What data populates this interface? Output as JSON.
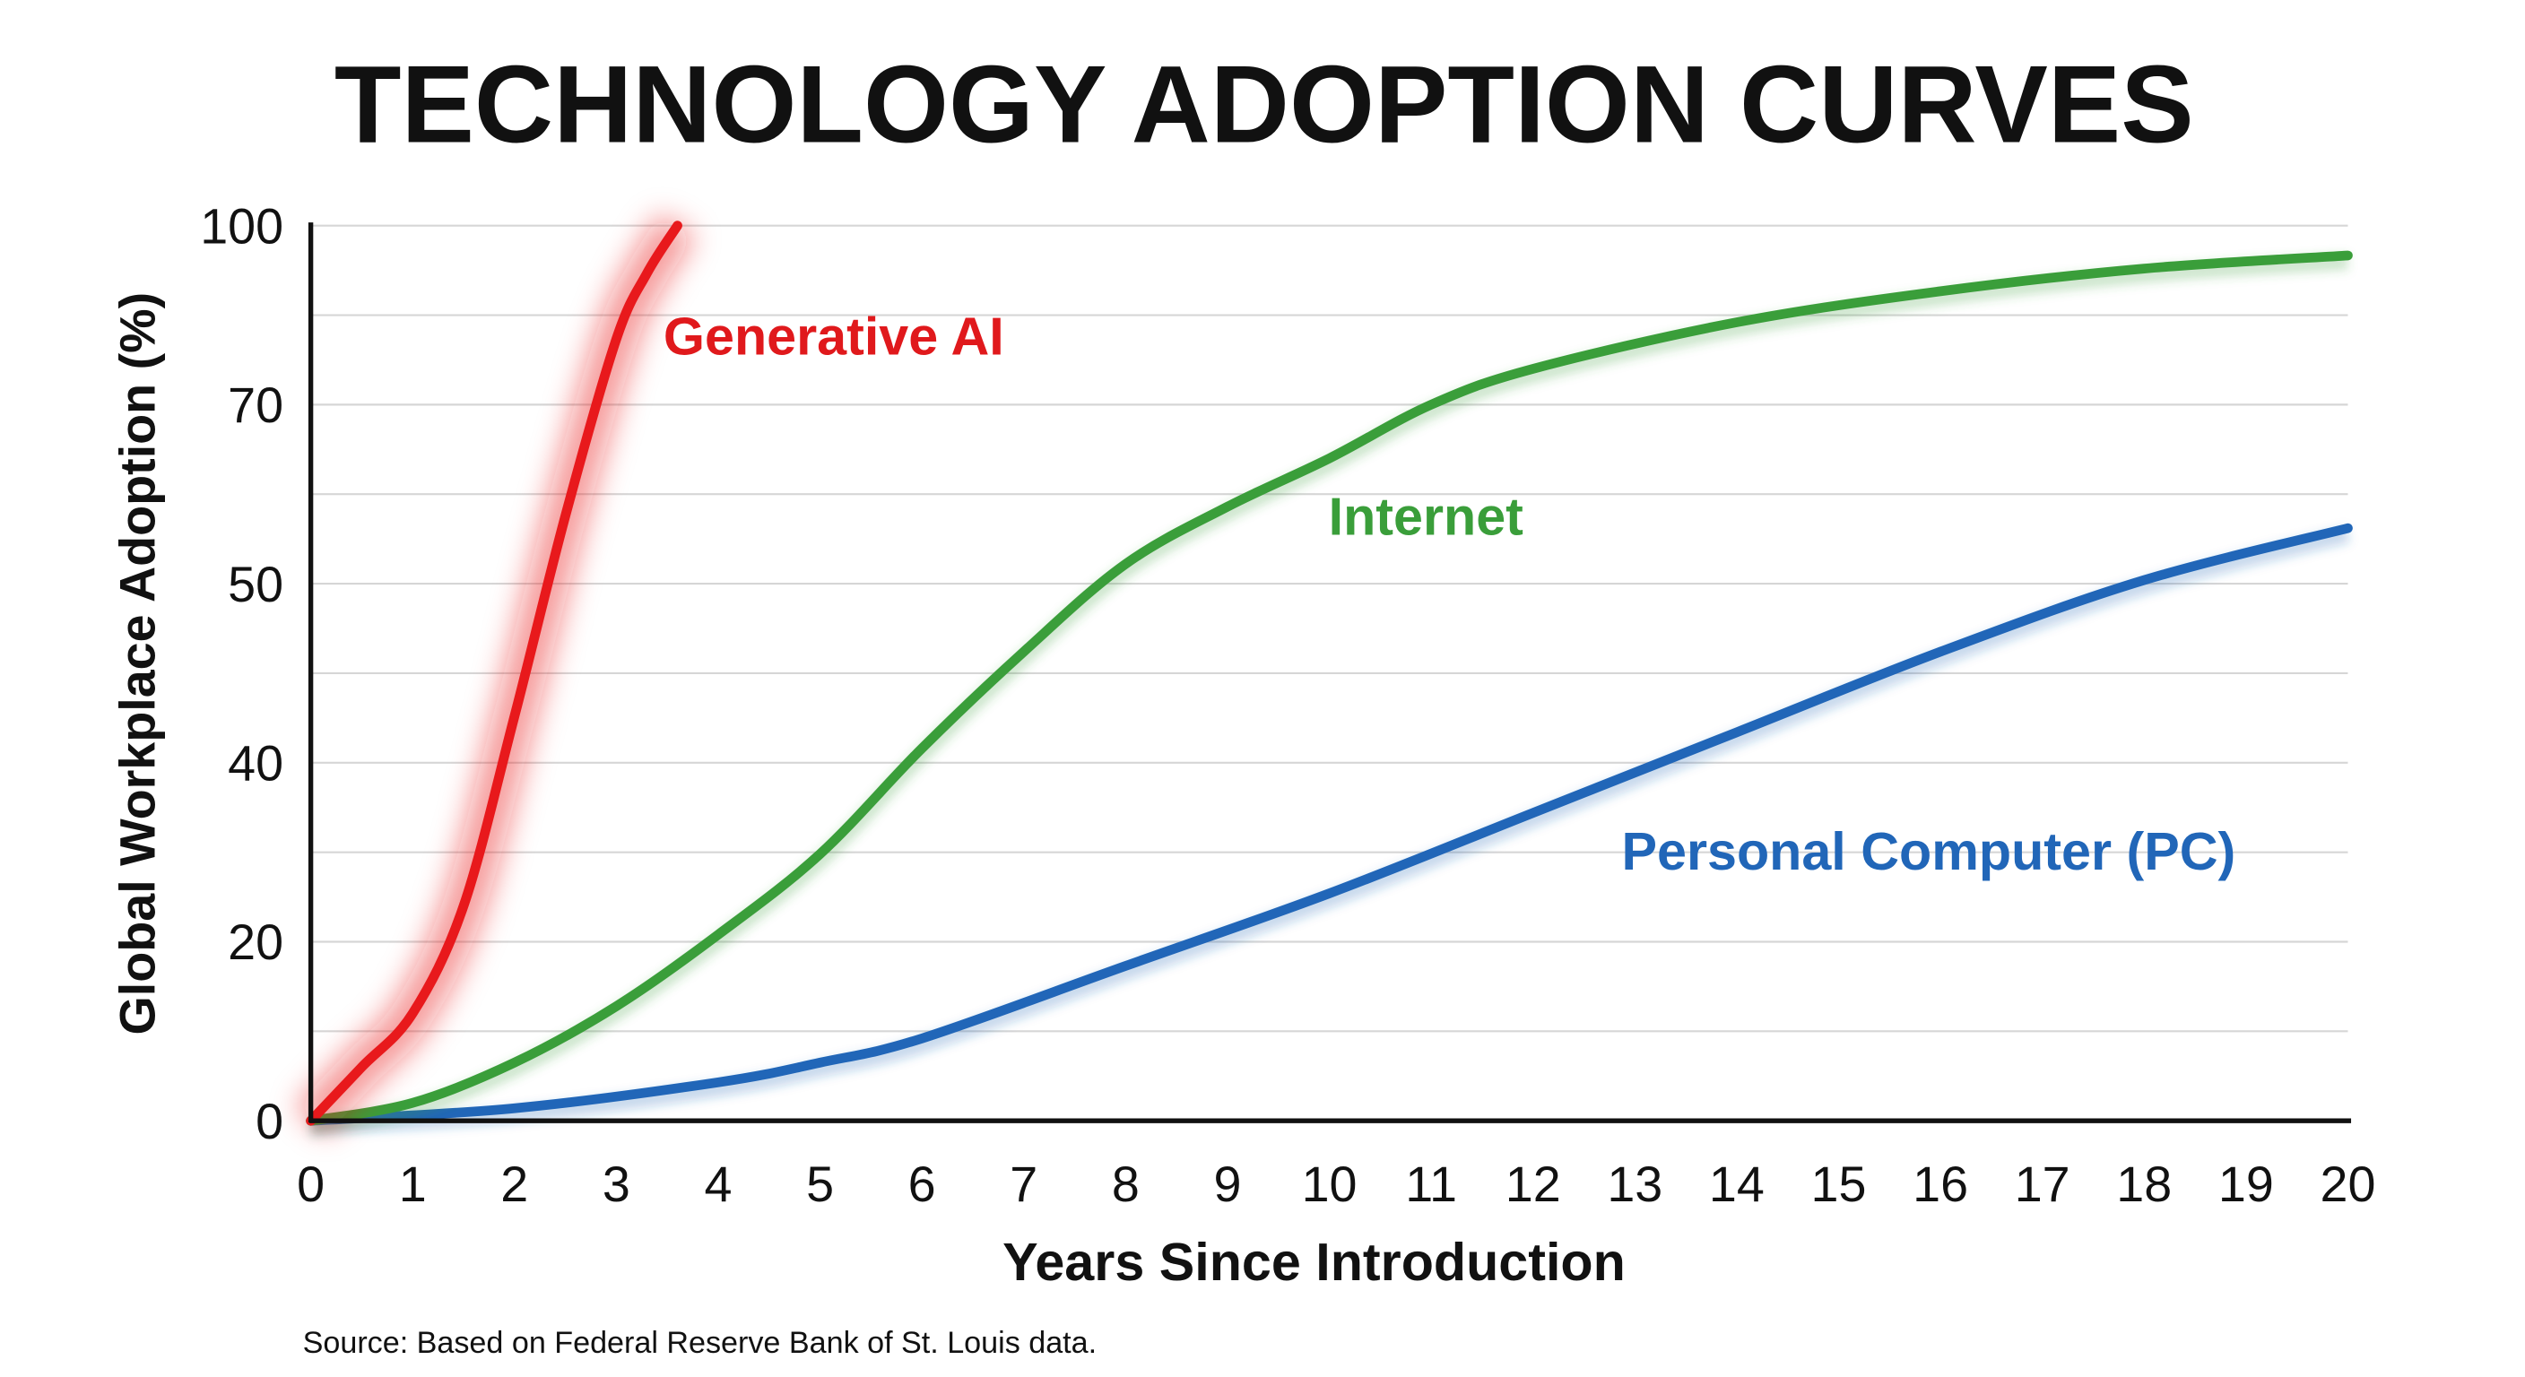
{
  "chart_data": {
    "type": "line",
    "title": "TECHNOLOGY ADOPTION CURVES",
    "xlabel": "Years Since Introduction",
    "ylabel": "Global Workplace Adoption (%)",
    "source": "Source: Based on Federal Reserve Bank of St. Louis data.",
    "xlim": [
      0,
      20
    ],
    "x_ticks": [
      "0",
      "1",
      "2",
      "3",
      "4",
      "5",
      "6",
      "7",
      "8",
      "9",
      "10",
      "11",
      "12",
      "13",
      "14",
      "15",
      "16",
      "17",
      "18",
      "19",
      "20"
    ],
    "y_ticks": [
      "0",
      "20",
      "40",
      "50",
      "70",
      "100"
    ],
    "y_tick_values": [
      0,
      20,
      40,
      50,
      70,
      100
    ],
    "y_scale": "non-uniform (evenly spaced tick labels)",
    "grid": true,
    "legend": "inline labels",
    "series": [
      {
        "name": "Generative AI",
        "color": "#e8191c",
        "glow": true,
        "x": [
          0,
          0.5,
          1,
          1.5,
          2,
          2.5,
          3,
          3.3,
          3.6
        ],
        "y": [
          0,
          6,
          12,
          24,
          42.6,
          57.6,
          81,
          92,
          100
        ]
      },
      {
        "name": "Internet",
        "color": "#3a9e3a",
        "x": [
          0,
          1,
          2,
          3,
          4,
          5,
          6,
          7,
          8,
          9,
          10,
          11,
          12,
          14,
          16,
          18,
          20
        ],
        "y": [
          0,
          2,
          6.5,
          12.8,
          20.8,
          29.8,
          40.8,
          46.2,
          52.2,
          58.6,
          64,
          70,
          76,
          83.8,
          89,
          92.8,
          95
        ]
      },
      {
        "name": "Personal Computer (PC)",
        "color": "#2166b8",
        "x": [
          0,
          2,
          4,
          5,
          6,
          8,
          10,
          12,
          14,
          16,
          18,
          20
        ],
        "y": [
          0,
          1.4,
          4.3,
          6.5,
          9.2,
          17.3,
          25.4,
          34.4,
          41.7,
          46.2,
          50.4,
          56.2
        ]
      }
    ]
  }
}
